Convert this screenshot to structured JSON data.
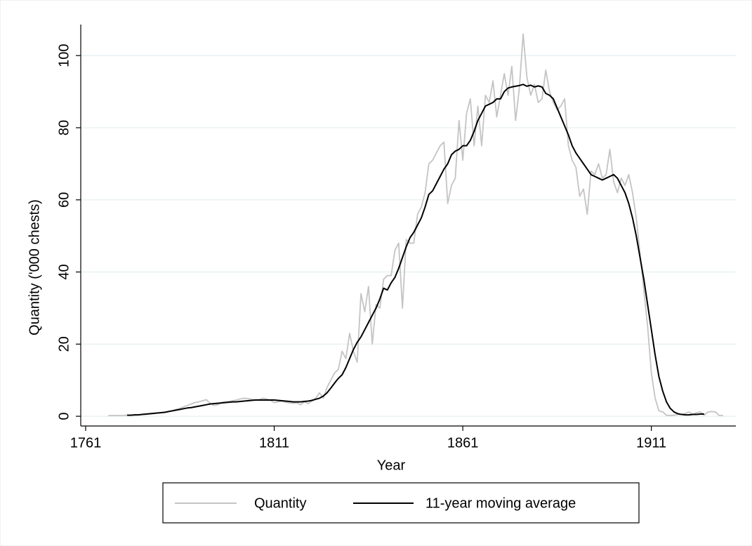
{
  "chart_data": {
    "type": "line",
    "xlabel": "Year",
    "ylabel": "Quantity ('000 chests)",
    "x": [
      1767,
      1768,
      1769,
      1770,
      1771,
      1772,
      1773,
      1774,
      1775,
      1776,
      1777,
      1778,
      1779,
      1780,
      1781,
      1782,
      1783,
      1784,
      1785,
      1786,
      1787,
      1788,
      1789,
      1790,
      1791,
      1792,
      1793,
      1794,
      1795,
      1796,
      1797,
      1798,
      1799,
      1800,
      1801,
      1802,
      1803,
      1804,
      1805,
      1806,
      1807,
      1808,
      1809,
      1810,
      1811,
      1812,
      1813,
      1814,
      1815,
      1816,
      1817,
      1818,
      1819,
      1820,
      1821,
      1822,
      1823,
      1824,
      1825,
      1826,
      1827,
      1828,
      1829,
      1830,
      1831,
      1832,
      1833,
      1834,
      1835,
      1836,
      1837,
      1838,
      1839,
      1840,
      1841,
      1842,
      1843,
      1844,
      1845,
      1846,
      1847,
      1848,
      1849,
      1850,
      1851,
      1852,
      1853,
      1854,
      1855,
      1856,
      1857,
      1858,
      1859,
      1860,
      1861,
      1862,
      1863,
      1864,
      1865,
      1866,
      1867,
      1868,
      1869,
      1870,
      1871,
      1872,
      1873,
      1874,
      1875,
      1876,
      1877,
      1878,
      1879,
      1880,
      1881,
      1882,
      1883,
      1884,
      1885,
      1886,
      1887,
      1888,
      1889,
      1890,
      1891,
      1892,
      1893,
      1894,
      1895,
      1896,
      1897,
      1898,
      1899,
      1900,
      1901,
      1902,
      1903,
      1904,
      1905,
      1906,
      1907,
      1908,
      1909,
      1910,
      1911,
      1912,
      1913,
      1914,
      1915,
      1916,
      1917,
      1918,
      1919,
      1920,
      1921,
      1922,
      1923,
      1924,
      1925,
      1926,
      1927,
      1928,
      1929,
      1930
    ],
    "series": [
      {
        "name": "Quantity",
        "color": "#c4c4c4",
        "values": [
          0.2,
          0.2,
          0.2,
          0.2,
          0.2,
          0.3,
          0.3,
          0.3,
          0.4,
          0.5,
          0.5,
          0.6,
          0.7,
          0.9,
          1.0,
          1.2,
          1.4,
          1.6,
          1.9,
          2.2,
          2.6,
          3.0,
          3.4,
          3.8,
          4.0,
          4.3,
          4.6,
          3.6,
          3.0,
          3.2,
          3.8,
          4.0,
          4.1,
          4.3,
          4.5,
          4.8,
          5.0,
          4.9,
          4.7,
          4.5,
          4.6,
          5.0,
          4.8,
          4.4,
          3.8,
          4.0,
          4.2,
          3.9,
          3.7,
          3.6,
          3.7,
          3.2,
          4.0,
          3.5,
          4.2,
          5.0,
          6.5,
          5.0,
          8.0,
          10.0,
          12.0,
          13.0,
          18.0,
          16.0,
          23.0,
          18.0,
          15.0,
          34.0,
          29.0,
          36.0,
          20.0,
          31.0,
          30.0,
          38.0,
          39.0,
          39.0,
          46.0,
          48.0,
          30.0,
          49.0,
          48.0,
          48.0,
          56.0,
          58.0,
          62.0,
          70.0,
          71.0,
          73.0,
          75.0,
          76.0,
          59.0,
          64.0,
          66.0,
          82.0,
          71.0,
          84.0,
          88.0,
          75.0,
          86.0,
          75.0,
          89.0,
          87.0,
          93.0,
          83.0,
          89.0,
          95.0,
          89.0,
          97.0,
          82.0,
          91.0,
          106.0,
          94.0,
          89.0,
          92.0,
          87.0,
          88.0,
          96.0,
          90.0,
          87.0,
          85.0,
          86.0,
          88.0,
          75.0,
          71.0,
          69.0,
          61.0,
          63.0,
          56.0,
          68.0,
          67.0,
          70.0,
          66.0,
          67.0,
          74.0,
          65.0,
          62.0,
          66.0,
          64.0,
          67.0,
          62.0,
          55.0,
          45.0,
          35.0,
          25.0,
          12.0,
          5.0,
          1.5,
          1.2,
          0.3,
          0.2,
          0.3,
          0.5,
          0.5,
          0.8,
          1.2,
          0.5,
          1.0,
          1.2,
          0.3,
          1.2,
          1.3,
          1.2,
          0.2,
          0.2
        ]
      },
      {
        "name": "11-year moving average",
        "color": "#000000",
        "values": [
          null,
          null,
          null,
          null,
          null,
          0.3,
          0.3,
          0.4,
          0.4,
          0.5,
          0.6,
          0.7,
          0.8,
          0.9,
          1.0,
          1.1,
          1.3,
          1.5,
          1.7,
          1.9,
          2.1,
          2.3,
          2.4,
          2.6,
          2.8,
          3.0,
          3.2,
          3.4,
          3.5,
          3.6,
          3.7,
          3.8,
          3.9,
          4.0,
          4.0,
          4.1,
          4.2,
          4.3,
          4.4,
          4.5,
          4.5,
          4.5,
          4.5,
          4.5,
          4.5,
          4.4,
          4.3,
          4.2,
          4.1,
          4.0,
          4.0,
          4.0,
          4.1,
          4.2,
          4.4,
          4.7,
          5.0,
          5.6,
          6.5,
          7.8,
          9.2,
          10.5,
          11.5,
          13.5,
          16.0,
          18.5,
          20.5,
          22.0,
          24.0,
          26.0,
          28.0,
          30.0,
          32.5,
          35.5,
          35.0,
          37.0,
          38.5,
          41.0,
          44.0,
          47.0,
          49.5,
          51.0,
          53.0,
          55.0,
          58.0,
          61.5,
          62.5,
          64.5,
          66.5,
          68.5,
          70.0,
          72.5,
          73.5,
          74.0,
          75.0,
          75.0,
          76.5,
          79.0,
          82.0,
          84.0,
          86.0,
          86.5,
          87.0,
          88.0,
          88.0,
          90.0,
          91.0,
          91.3,
          91.5,
          91.7,
          92.0,
          91.5,
          91.8,
          91.3,
          91.6,
          91.3,
          89.5,
          89.0,
          88.0,
          85.5,
          83.0,
          80.5,
          78.0,
          75.0,
          73.0,
          71.5,
          70.0,
          68.5,
          67.0,
          66.5,
          66.0,
          65.5,
          66.0,
          66.5,
          67.0,
          66.0,
          64.0,
          62.0,
          59.0,
          55.0,
          50.0,
          44.0,
          38.0,
          31.0,
          24.0,
          17.0,
          11.0,
          7.0,
          4.0,
          2.2,
          1.2,
          0.7,
          0.5,
          0.4,
          0.4,
          0.5,
          0.5,
          0.6,
          0.6,
          null,
          null,
          null,
          null,
          null
        ]
      }
    ],
    "xlim": [
      1759.7,
      1933.4
    ],
    "ylim": [
      -2.7,
      108.6
    ],
    "xticks": [
      1761,
      1811,
      1861,
      1911
    ],
    "yticks": [
      0,
      20,
      40,
      60,
      80,
      100
    ],
    "grid": true,
    "legend": "bottom"
  }
}
